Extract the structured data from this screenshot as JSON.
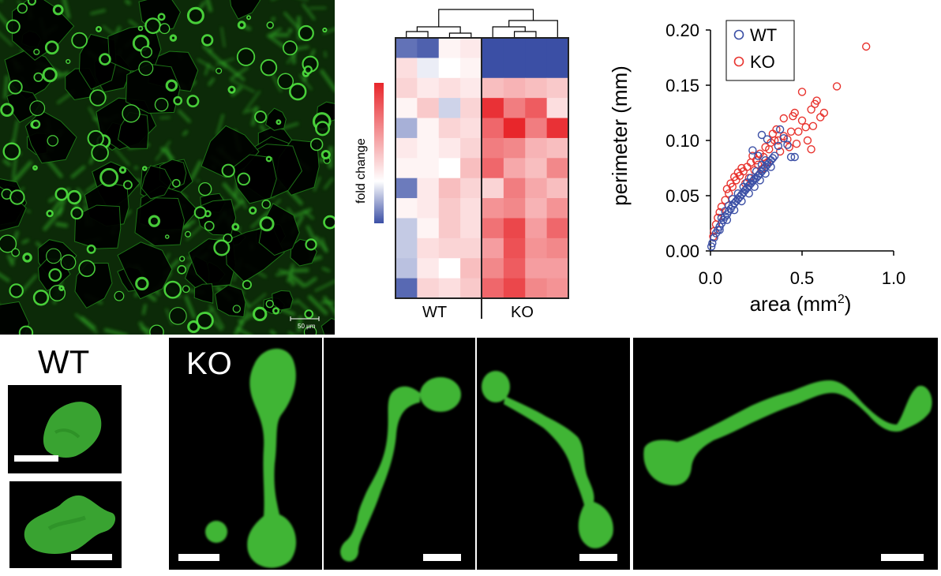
{
  "micrograph": {
    "scale_label": "50 µm"
  },
  "heatmap": {
    "colorbar_label": "fold change",
    "groups": [
      "WT",
      "KO"
    ],
    "colors": {
      "low": "#3b4fa5",
      "mid": "#ffffff",
      "high": "#e8262b"
    },
    "matrix": [
      [
        -0.8,
        -0.9,
        0.05,
        0.1,
        -1.0,
        -1.0,
        -1.0,
        -1.0
      ],
      [
        0.15,
        -0.1,
        0.0,
        0.05,
        -1.0,
        -1.0,
        -1.0,
        -1.0
      ],
      [
        0.2,
        0.1,
        0.15,
        0.1,
        0.3,
        0.35,
        0.3,
        0.25
      ],
      [
        0.05,
        0.25,
        -0.25,
        0.2,
        0.95,
        0.6,
        0.75,
        0.15
      ],
      [
        -0.45,
        0.05,
        0.2,
        0.15,
        0.7,
        1.0,
        0.6,
        0.95
      ],
      [
        0.1,
        0.05,
        0.1,
        0.2,
        0.6,
        0.55,
        0.35,
        0.3
      ],
      [
        0.05,
        0.05,
        0.0,
        0.3,
        0.7,
        0.4,
        0.3,
        0.55
      ],
      [
        -0.75,
        0.1,
        0.3,
        0.2,
        0.2,
        0.6,
        0.4,
        0.3
      ],
      [
        0.05,
        0.1,
        0.25,
        0.15,
        0.5,
        0.55,
        0.35,
        0.5
      ],
      [
        -0.3,
        0.05,
        0.25,
        0.15,
        0.65,
        0.85,
        0.45,
        0.7
      ],
      [
        -0.3,
        0.15,
        0.2,
        0.2,
        0.45,
        0.8,
        0.5,
        0.55
      ],
      [
        -0.35,
        0.1,
        0.0,
        0.3,
        0.55,
        0.75,
        0.45,
        0.45
      ],
      [
        -0.85,
        0.2,
        0.15,
        0.25,
        0.7,
        0.85,
        0.55,
        0.5
      ]
    ]
  },
  "chart_data": {
    "type": "scatter",
    "title": "",
    "xlabel_main": "area (mm",
    "xlabel_sup": "2",
    "xlabel_close": ")",
    "ylabel": "perimeter (mm)",
    "xlim": [
      0,
      1.0
    ],
    "ylim": [
      0,
      0.2
    ],
    "xticks": [
      "0.0",
      "0.5",
      "1.0"
    ],
    "yticks": [
      "0.00",
      "0.05",
      "0.10",
      "0.15",
      "0.20"
    ],
    "legend_position": "top-left",
    "series": [
      {
        "name": "WT",
        "color": "#3b4fa5",
        "points": [
          [
            0.005,
            0.004
          ],
          [
            0.01,
            0.007
          ],
          [
            0.02,
            0.012
          ],
          [
            0.03,
            0.016
          ],
          [
            0.04,
            0.019
          ],
          [
            0.05,
            0.022
          ],
          [
            0.06,
            0.025
          ],
          [
            0.07,
            0.028
          ],
          [
            0.08,
            0.031
          ],
          [
            0.09,
            0.033
          ],
          [
            0.1,
            0.036
          ],
          [
            0.11,
            0.038
          ],
          [
            0.12,
            0.041
          ],
          [
            0.13,
            0.043
          ],
          [
            0.14,
            0.045
          ],
          [
            0.15,
            0.047
          ],
          [
            0.16,
            0.049
          ],
          [
            0.17,
            0.051
          ],
          [
            0.18,
            0.053
          ],
          [
            0.19,
            0.055
          ],
          [
            0.2,
            0.057
          ],
          [
            0.21,
            0.059
          ],
          [
            0.22,
            0.061
          ],
          [
            0.23,
            0.063
          ],
          [
            0.24,
            0.065
          ],
          [
            0.25,
            0.066
          ],
          [
            0.26,
            0.068
          ],
          [
            0.27,
            0.07
          ],
          [
            0.28,
            0.072
          ],
          [
            0.29,
            0.074
          ],
          [
            0.3,
            0.076
          ],
          [
            0.31,
            0.078
          ],
          [
            0.32,
            0.08
          ],
          [
            0.33,
            0.082
          ],
          [
            0.34,
            0.084
          ],
          [
            0.35,
            0.086
          ],
          [
            0.06,
            0.03
          ],
          [
            0.08,
            0.036
          ],
          [
            0.1,
            0.041
          ],
          [
            0.12,
            0.047
          ],
          [
            0.15,
            0.052
          ],
          [
            0.18,
            0.058
          ],
          [
            0.2,
            0.062
          ],
          [
            0.22,
            0.066
          ],
          [
            0.25,
            0.072
          ],
          [
            0.28,
            0.078
          ],
          [
            0.3,
            0.082
          ],
          [
            0.05,
            0.019
          ],
          [
            0.09,
            0.028
          ],
          [
            0.13,
            0.037
          ],
          [
            0.17,
            0.045
          ],
          [
            0.21,
            0.052
          ],
          [
            0.24,
            0.058
          ],
          [
            0.27,
            0.064
          ],
          [
            0.3,
            0.07
          ],
          [
            0.33,
            0.076
          ],
          [
            0.28,
            0.105
          ],
          [
            0.31,
            0.101
          ],
          [
            0.38,
            0.11
          ],
          [
            0.4,
            0.102
          ],
          [
            0.37,
            0.095
          ],
          [
            0.42,
            0.096
          ],
          [
            0.44,
            0.085
          ],
          [
            0.46,
            0.085
          ],
          [
            0.23,
            0.091
          ],
          [
            0.26,
            0.086
          ]
        ]
      },
      {
        "name": "KO",
        "color": "#e8332e",
        "points": [
          [
            0.85,
            0.185
          ],
          [
            0.69,
            0.149
          ],
          [
            0.58,
            0.136
          ],
          [
            0.57,
            0.133
          ],
          [
            0.55,
            0.128
          ],
          [
            0.5,
            0.144
          ],
          [
            0.46,
            0.125
          ],
          [
            0.45,
            0.122
          ],
          [
            0.5,
            0.118
          ],
          [
            0.52,
            0.112
          ],
          [
            0.56,
            0.113
          ],
          [
            0.48,
            0.108
          ],
          [
            0.4,
            0.12
          ],
          [
            0.36,
            0.11
          ],
          [
            0.42,
            0.101
          ],
          [
            0.47,
            0.097
          ],
          [
            0.53,
            0.1
          ],
          [
            0.55,
            0.092
          ],
          [
            0.43,
            0.094
          ],
          [
            0.38,
            0.09
          ],
          [
            0.33,
            0.098
          ],
          [
            0.3,
            0.094
          ],
          [
            0.27,
            0.088
          ],
          [
            0.25,
            0.082
          ],
          [
            0.22,
            0.08
          ],
          [
            0.2,
            0.076
          ],
          [
            0.18,
            0.072
          ],
          [
            0.16,
            0.068
          ],
          [
            0.14,
            0.064
          ],
          [
            0.12,
            0.058
          ],
          [
            0.1,
            0.052
          ],
          [
            0.08,
            0.046
          ],
          [
            0.06,
            0.04
          ],
          [
            0.05,
            0.035
          ],
          [
            0.04,
            0.03
          ],
          [
            0.03,
            0.024
          ],
          [
            0.02,
            0.018
          ],
          [
            0.015,
            0.013
          ],
          [
            0.35,
            0.1
          ],
          [
            0.32,
            0.092
          ],
          [
            0.29,
            0.085
          ],
          [
            0.26,
            0.078
          ],
          [
            0.24,
            0.073
          ],
          [
            0.21,
            0.066
          ],
          [
            0.19,
            0.061
          ],
          [
            0.4,
            0.104
          ],
          [
            0.44,
            0.108
          ],
          [
            0.37,
            0.1
          ],
          [
            0.34,
            0.106
          ],
          [
            0.31,
            0.08
          ],
          [
            0.28,
            0.074
          ],
          [
            0.09,
            0.056
          ],
          [
            0.11,
            0.061
          ],
          [
            0.13,
            0.067
          ],
          [
            0.15,
            0.071
          ],
          [
            0.17,
            0.075
          ],
          [
            0.23,
            0.086
          ],
          [
            0.6,
            0.121
          ],
          [
            0.62,
            0.125
          ]
        ]
      }
    ]
  },
  "bottom": {
    "wt_label": "WT",
    "ko_label": "KO"
  }
}
